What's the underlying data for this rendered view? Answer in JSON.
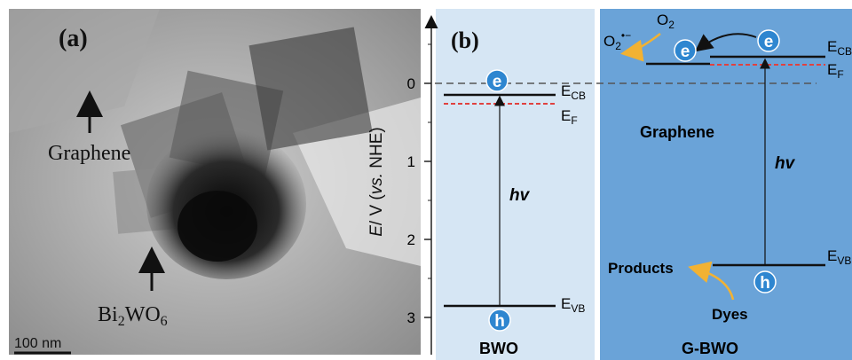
{
  "panel_a": {
    "label": "(a)",
    "graphene_label": "Graphene",
    "bwo_label_base": "Bi",
    "bwo_sub1": "2",
    "bwo_mid": "WO",
    "bwo_sub2": "6",
    "scale_bar_label": "100 nm"
  },
  "panel_b": {
    "label": "(b)",
    "y_axis": {
      "label_e": "E",
      "label_rest": "/ V (",
      "label_vs": "vs.",
      "label_end": " NHE)",
      "ticks": [
        "0",
        "1",
        "2",
        "3"
      ]
    },
    "bwo": {
      "name": "BWO",
      "ecb_e": "E",
      "ecb_sub": "CB",
      "ef_e": "E",
      "ef_sub": "F",
      "evb_e": "E",
      "evb_sub": "VB",
      "hv": "hv",
      "electron": "e",
      "hole": "h"
    },
    "gbwo": {
      "name": "G-BWO",
      "graphene": "Graphene",
      "o2": "O",
      "o2_sub": "2",
      "o2rad": "O",
      "o2rad_sub": "2",
      "o2rad_sup": "•−",
      "ecb_e": "E",
      "ecb_sub": "CB",
      "ef_e": "E",
      "ef_sub": "F",
      "evb_e": "E",
      "evb_sub": "VB",
      "hv": "hv",
      "products": "Products",
      "dyes": "Dyes",
      "electron": "e",
      "hole": "h"
    }
  },
  "colors": {
    "bwo_bg": "#d6e6f4",
    "gbwo_bg": "#6aa3d8",
    "electron_fill": "#2e86d0",
    "dashed_red": "#e0413f",
    "arrow_orange": "#f2b233"
  }
}
